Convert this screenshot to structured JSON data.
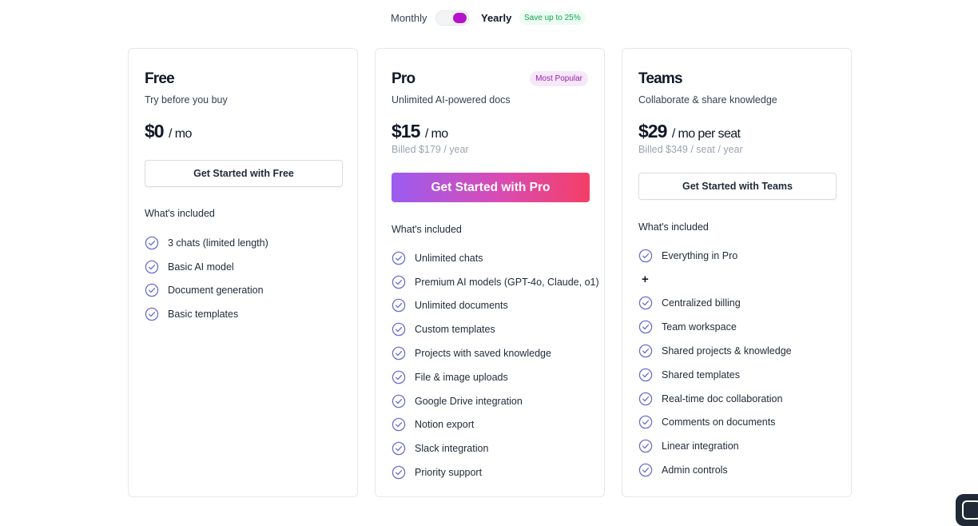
{
  "billing_toggle": {
    "monthly_label": "Monthly",
    "yearly_label": "Yearly",
    "selected": "Yearly",
    "save_badge": "Save up to 25%"
  },
  "colors": {
    "accent": "#b512c9",
    "save_green": "#16a34a",
    "popular_text": "#9d1db0",
    "cta_gradient_start": "#9b5cf0",
    "cta_gradient_end": "#f43f66",
    "check_icon": "#6d6fcf"
  },
  "plans": {
    "free": {
      "name": "Free",
      "tagline": "Try before you buy",
      "price": "$0",
      "price_unit": "/ mo",
      "cta": "Get Started with Free",
      "included_title": "What's included",
      "features": [
        "3 chats (limited length)",
        "Basic AI model",
        "Document generation",
        "Basic templates"
      ]
    },
    "pro": {
      "name": "Pro",
      "badge": "Most Popular",
      "tagline": "Unlimited AI-powered docs",
      "price": "$15",
      "price_unit": "/ mo",
      "billed": "Billed $179 / year",
      "cta": "Get Started with Pro",
      "included_title": "What's included",
      "features": [
        "Unlimited chats",
        "Premium AI models (GPT-4o, Claude, o1)",
        "Unlimited documents",
        "Custom templates",
        "Projects with saved knowledge",
        "File & image uploads",
        "Google Drive integration",
        "Notion export",
        "Slack integration",
        "Priority support"
      ]
    },
    "teams": {
      "name": "Teams",
      "tagline": "Collaborate & share knowledge",
      "price": "$29",
      "price_unit": "/ mo per seat",
      "billed": "Billed $349 / seat / year",
      "cta": "Get Started with Teams",
      "included_title": "What's included",
      "base_feature": "Everything in Pro",
      "plus_symbol": "+",
      "features": [
        "Centralized billing",
        "Team workspace",
        "Shared projects & knowledge",
        "Shared templates",
        "Real-time doc collaboration",
        "Comments on documents",
        "Linear integration",
        "Admin controls"
      ]
    }
  },
  "icons": {
    "feature_check": "check-circle-icon",
    "chat_widget": "chat-icon"
  }
}
